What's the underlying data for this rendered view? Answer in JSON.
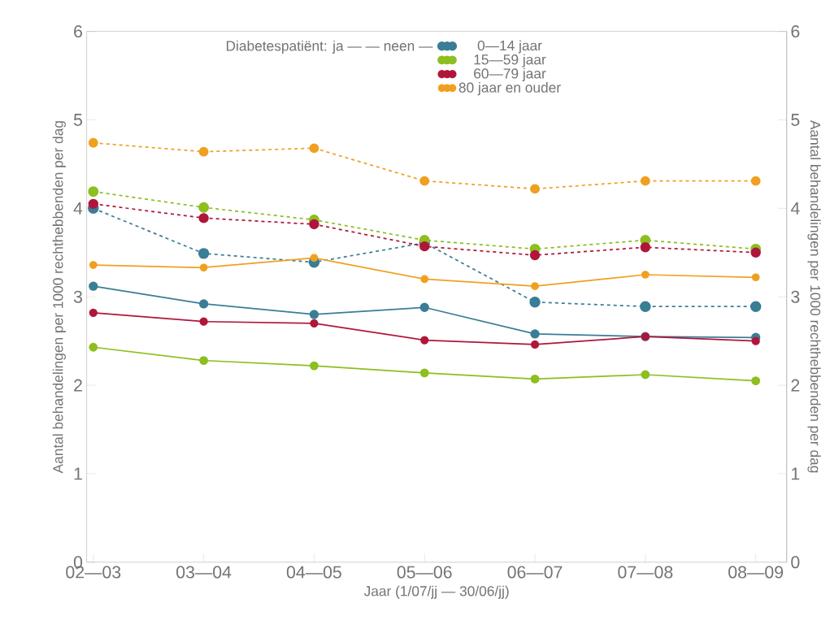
{
  "chart_data": {
    "type": "line",
    "xlabel": "Jaar (1/07/jj — 30/06/jj)",
    "ylabel": "Aantal behandelingen per 1000 rechthebbenden per dag",
    "y2label": "Aantal behandelingen per 1000 rechthebbenden per dag",
    "legend_title": "Diabetespatiënt: ja — — neen —",
    "categories": [
      "02—03",
      "03—04",
      "04—05",
      "05—06",
      "06—07",
      "07—08",
      "08—09"
    ],
    "ylim": [
      0,
      6
    ],
    "yticks": [
      0,
      1,
      2,
      3,
      4,
      5,
      6
    ],
    "y2lim": [
      0,
      6
    ],
    "y2ticks": [
      0,
      1,
      2,
      3,
      4,
      5,
      6
    ],
    "marker": "circle",
    "legend": "top",
    "grid": false,
    "series": [
      {
        "color": "#3a7d96",
        "line_style": "dashed",
        "values": [
          4.0,
          3.49,
          3.39,
          3.61,
          2.94,
          2.89,
          2.89
        ]
      },
      {
        "color": "#8cbf1f",
        "line_style": "dashed",
        "values": [
          4.19,
          4.01,
          3.87,
          3.64,
          3.54,
          3.64,
          3.54
        ]
      },
      {
        "color": "#b0163a",
        "line_style": "dashed",
        "values": [
          4.05,
          3.89,
          3.82,
          3.57,
          3.47,
          3.56,
          3.5
        ]
      },
      {
        "color": "#f0a020",
        "line_style": "dashed",
        "values": [
          4.74,
          4.64,
          4.68,
          4.31,
          4.22,
          4.31,
          4.31
        ]
      },
      {
        "name": "0—14 jaar",
        "color": "#3a7d96",
        "line_style": "solid",
        "values": [
          3.12,
          2.92,
          2.8,
          2.88,
          2.58,
          2.55,
          2.54
        ]
      },
      {
        "name": "15—59 jaar",
        "color": "#8cbf1f",
        "line_style": "solid",
        "values": [
          2.43,
          2.28,
          2.22,
          2.14,
          2.07,
          2.12,
          2.05
        ]
      },
      {
        "name": "60—79 jaar",
        "color": "#b0163a",
        "line_style": "solid",
        "values": [
          2.82,
          2.72,
          2.7,
          2.51,
          2.46,
          2.55,
          2.5
        ]
      },
      {
        "name": "80 jaar en ouder",
        "color": "#f0a020",
        "line_style": "solid",
        "values": [
          3.36,
          3.33,
          3.44,
          3.2,
          3.12,
          3.25,
          3.22
        ]
      }
    ]
  }
}
